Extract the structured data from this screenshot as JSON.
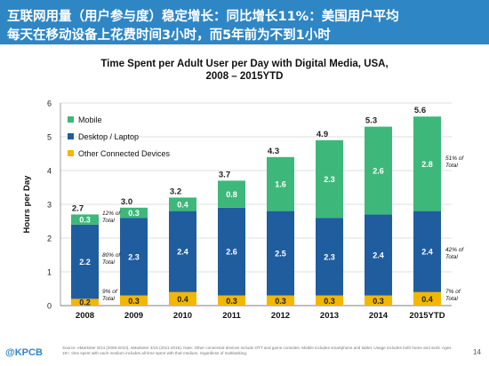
{
  "header": {
    "line1": "互联网用量（用户参与度）稳定增长：同比增长11%：美国用户平均",
    "line2": "每天在移动设备上花费时间3小时，而5年前为不到1小时"
  },
  "chart_data": {
    "type": "bar",
    "stacked": true,
    "title_line1": "Time Spent per Adult User per Day with Digital Media, USA,",
    "title_line2": "2008 – 2015YTD",
    "xlabel": "",
    "ylabel": "Hours per Day",
    "ylim": [
      0,
      6
    ],
    "yticks": [
      "0",
      "1",
      "2",
      "3",
      "4",
      "5",
      "6"
    ],
    "categories": [
      "2008",
      "2009",
      "2010",
      "2011",
      "2012",
      "2013",
      "2014",
      "2015YTD"
    ],
    "series": [
      {
        "name": "Other Connected Devices",
        "color": "#f2b701",
        "values": [
          0.2,
          0.3,
          0.4,
          0.3,
          0.3,
          0.3,
          0.3,
          0.4
        ],
        "labels": [
          "0.2",
          "0.3",
          "0.4",
          "0.3",
          "0.3",
          "0.3",
          "0.3",
          "0.4"
        ]
      },
      {
        "name": "Desktop / Laptop",
        "color": "#1f5d9f",
        "values": [
          2.2,
          2.3,
          2.4,
          2.6,
          2.5,
          2.3,
          2.4,
          2.4
        ],
        "labels": [
          "2.2",
          "2.3",
          "2.4",
          "2.6",
          "2.5",
          "2.3",
          "2.4",
          "2.4"
        ]
      },
      {
        "name": "Mobile",
        "color": "#3db87a",
        "values": [
          0.3,
          0.3,
          0.4,
          0.8,
          1.6,
          2.3,
          2.6,
          2.8
        ],
        "labels": [
          "0.3",
          "0.3",
          "0.4",
          "0.8",
          "1.6",
          "2.3",
          "2.6",
          "2.8"
        ]
      }
    ],
    "totals": [
      "2.7",
      "3.0",
      "3.2",
      "3.7",
      "4.3",
      "4.9",
      "5.3",
      "5.6"
    ],
    "legend": [
      "Mobile",
      "Desktop / Laptop",
      "Other Connected Devices"
    ],
    "legend_position": "top-left",
    "annotations": {
      "2008": {
        "mobile": [
          "12% of",
          "Total"
        ],
        "desktop": [
          "80% of",
          "Total"
        ],
        "other": [
          "9% of",
          "Total"
        ]
      },
      "2015YTD": {
        "mobile": [
          "51% of",
          "Total"
        ],
        "desktop": [
          "42% of",
          "Total"
        ],
        "other": [
          "7% of",
          "Total"
        ]
      }
    },
    "grid": true
  },
  "footer": {
    "logo": "@KPCB",
    "source": "Source: eMarketer 9/14 (2008-2010), eMarketer 4/15 (2011-2015). Note: Other connected devices include OTT and game consoles. Mobile includes smartphone and tablet. Usage includes both home and work. Ages 18+; time spent with each medium includes all time spent with that medium, regardless of multitasking.",
    "page": "14"
  }
}
